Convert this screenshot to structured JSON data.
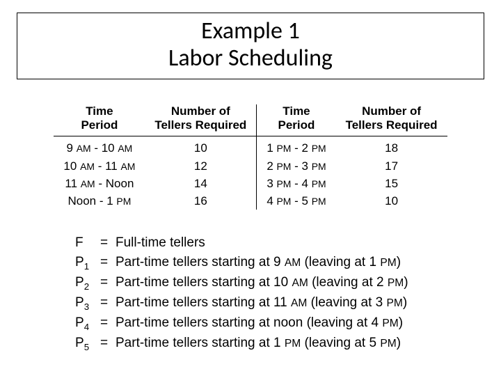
{
  "title": {
    "line1": "Example 1",
    "line2": "Labor Scheduling"
  },
  "table": {
    "headers": {
      "timePeriod_html": "Time<br>Period",
      "tellers_html": "Number of<br>Tellers Required"
    },
    "left": [
      {
        "period_html": "9 <span class='sc'>AM</span> - 10 <span class='sc'>AM</span>",
        "tellers": "10"
      },
      {
        "period_html": "10 <span class='sc'>AM</span> - 11 <span class='sc'>AM</span>",
        "tellers": "12"
      },
      {
        "period_html": "11 <span class='sc'>AM</span> - Noon",
        "tellers": "14"
      },
      {
        "period_html": "Noon - 1 <span class='sc'>PM</span>",
        "tellers": "16"
      }
    ],
    "right": [
      {
        "period_html": "1 <span class='sc'>PM</span> - 2 <span class='sc'>PM</span>",
        "tellers": "18"
      },
      {
        "period_html": "2 <span class='sc'>PM</span> - 3 <span class='sc'>PM</span>",
        "tellers": "17"
      },
      {
        "period_html": "3 <span class='sc'>PM</span> - 4 <span class='sc'>PM</span>",
        "tellers": "15"
      },
      {
        "period_html": "4 <span class='sc'>PM</span> - 5 <span class='sc'>PM</span>",
        "tellers": "10"
      }
    ]
  },
  "definitions": [
    {
      "sym_html": "F",
      "eq": "=",
      "desc_html": "Full-time tellers"
    },
    {
      "sym_html": "P<sub>1</sub>",
      "eq": "=",
      "desc_html": "Part-time tellers starting at 9 <span class='sc'>AM</span> (leaving at 1 <span class='sc'>PM</span>)"
    },
    {
      "sym_html": "P<sub>2</sub>",
      "eq": "=",
      "desc_html": "Part-time tellers starting at 10 <span class='sc'>AM</span> (leaving at 2 <span class='sc'>PM</span>)"
    },
    {
      "sym_html": "P<sub>3</sub>",
      "eq": "=",
      "desc_html": "Part-time tellers starting at 11 <span class='sc'>AM</span> (leaving at 3 <span class='sc'>PM</span>)"
    },
    {
      "sym_html": "P<sub>4</sub>",
      "eq": "=",
      "desc_html": "Part-time tellers starting at noon (leaving at 4 <span class='sc'>PM</span>)"
    },
    {
      "sym_html": "P<sub>5</sub>",
      "eq": "=",
      "desc_html": "Part-time tellers starting at 1 <span class='sc'>PM</span> (leaving at 5 <span class='sc'>PM</span>)"
    }
  ]
}
